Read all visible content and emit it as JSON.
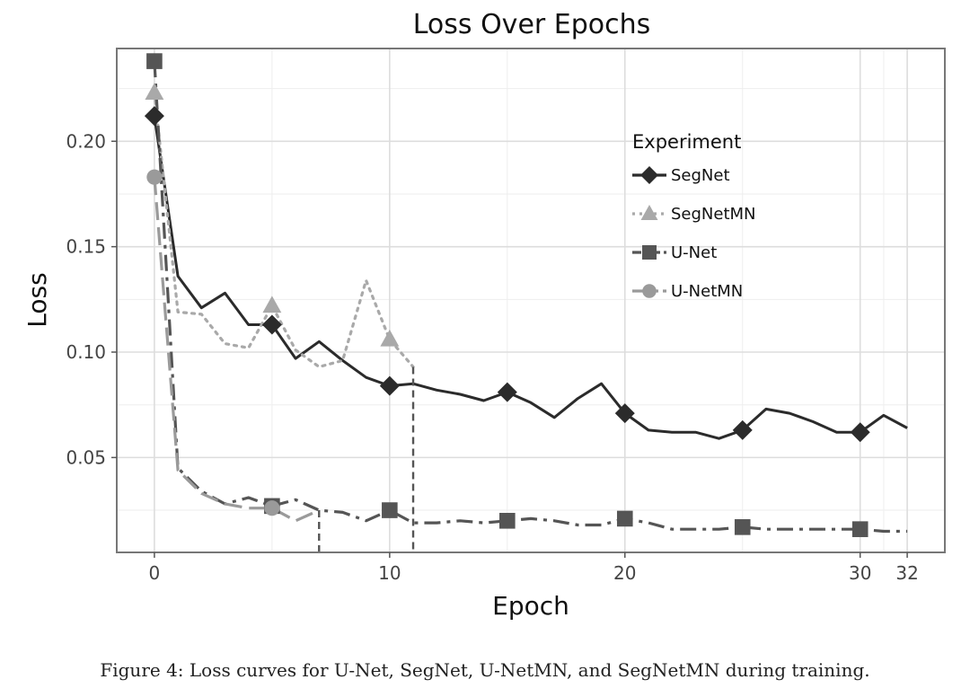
{
  "chart_data": {
    "type": "line",
    "title": "Loss Over Epochs",
    "xlabel": "Epoch",
    "ylabel": "Loss",
    "xlim": [
      -1.6,
      33.6
    ],
    "ylim": [
      0.005,
      0.244
    ],
    "x_ticks": [
      0,
      10,
      20,
      30,
      32
    ],
    "x_tick_labels": [
      "0",
      "10",
      "20",
      "30",
      "32"
    ],
    "y_ticks": [
      0.05,
      0.1,
      0.15,
      0.2
    ],
    "y_tick_labels": [
      "0.05",
      "0.10",
      "0.15",
      "0.20"
    ],
    "grid": true,
    "legend": {
      "title": "Experiment",
      "position": "top-right-inside",
      "entries": [
        "SegNet",
        "SegNetMN",
        "U-Net",
        "U-NetMN"
      ]
    },
    "series": [
      {
        "name": "SegNet",
        "color": "#2b2b2b",
        "dash": "solid",
        "marker": "diamond",
        "marker_every": 5,
        "x": [
          0,
          1,
          2,
          3,
          4,
          5,
          6,
          7,
          8,
          9,
          10,
          11,
          12,
          13,
          14,
          15,
          16,
          17,
          18,
          19,
          20,
          21,
          22,
          23,
          24,
          25,
          26,
          27,
          28,
          29,
          30,
          31,
          32
        ],
        "y": [
          0.212,
          0.136,
          0.121,
          0.128,
          0.113,
          0.113,
          0.097,
          0.105,
          0.096,
          0.088,
          0.084,
          0.085,
          0.082,
          0.08,
          0.077,
          0.081,
          0.076,
          0.069,
          0.078,
          0.085,
          0.071,
          0.063,
          0.062,
          0.062,
          0.059,
          0.063,
          0.073,
          0.071,
          0.067,
          0.062,
          0.062,
          0.07,
          0.064
        ]
      },
      {
        "name": "SegNetMN",
        "color": "#a9a9a9",
        "dash": "dotted",
        "marker": "triangle",
        "marker_every": 5,
        "x": [
          0,
          1,
          2,
          3,
          4,
          5,
          6,
          7,
          8,
          9,
          10,
          11,
          11
        ],
        "y": [
          0.223,
          0.119,
          0.118,
          0.104,
          0.102,
          0.122,
          0.101,
          0.093,
          0.096,
          0.134,
          0.106,
          0.093,
          0.093
        ]
      },
      {
        "name": "U-Net",
        "color": "#555555",
        "dash": "dashdot",
        "marker": "square",
        "marker_every": 5,
        "x": [
          0,
          1,
          2,
          3,
          4,
          5,
          6,
          7,
          8,
          9,
          10,
          11,
          11,
          12,
          13,
          14,
          15,
          16,
          17,
          18,
          19,
          20,
          21,
          22,
          23,
          24,
          25,
          26,
          27,
          28,
          29,
          30,
          31,
          32
        ],
        "y": [
          0.238,
          0.045,
          0.034,
          0.028,
          0.031,
          0.027,
          0.03,
          0.025,
          0.024,
          0.02,
          0.025,
          0.019,
          0.019,
          0.019,
          0.02,
          0.019,
          0.02,
          0.021,
          0.02,
          0.018,
          0.018,
          0.021,
          0.019,
          0.016,
          0.016,
          0.016,
          0.017,
          0.016,
          0.016,
          0.016,
          0.016,
          0.016,
          0.015,
          0.015
        ]
      },
      {
        "name": "U-NetMN",
        "color": "#9a9a9a",
        "dash": "longdash",
        "marker": "circle",
        "marker_every": 5,
        "x": [
          0,
          1,
          2,
          3,
          4,
          5,
          6,
          7
        ],
        "y": [
          0.183,
          0.044,
          0.033,
          0.028,
          0.026,
          0.026,
          0.02,
          0.025
        ]
      }
    ],
    "cutoffs": [
      {
        "series": "SegNetMN",
        "x": 11,
        "drop_to": "axis"
      },
      {
        "series": "U-NetMN",
        "x": 7,
        "drop_to": "axis"
      }
    ]
  },
  "caption": "Figure 4: Loss curves for U-Net, SegNet, U-NetMN, and SegNetMN during training."
}
